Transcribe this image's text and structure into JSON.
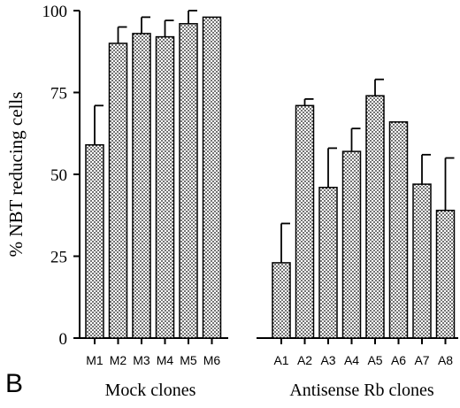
{
  "chart_data": {
    "type": "bar",
    "panel_label": "B",
    "ylabel": "% NBT reducing cells",
    "xlabel": "",
    "ylim": [
      0,
      100
    ],
    "yticks": [
      0,
      25,
      50,
      75,
      100
    ],
    "grid": false,
    "groups": [
      {
        "label": "Mock clones",
        "categories": [
          "M1",
          "M2",
          "M3",
          "M4",
          "M5",
          "M6"
        ],
        "values": [
          59,
          90,
          93,
          92,
          96,
          98
        ],
        "errors": [
          12,
          5,
          5,
          5,
          4,
          0
        ]
      },
      {
        "label": "Antisense Rb clones",
        "categories": [
          "A1",
          "A2",
          "A3",
          "A4",
          "A5",
          "A6",
          "A7",
          "A8"
        ],
        "values": [
          23,
          71,
          46,
          57,
          74,
          66,
          47,
          39
        ],
        "errors": [
          12,
          2,
          12,
          7,
          5,
          0,
          9,
          16
        ]
      }
    ]
  }
}
